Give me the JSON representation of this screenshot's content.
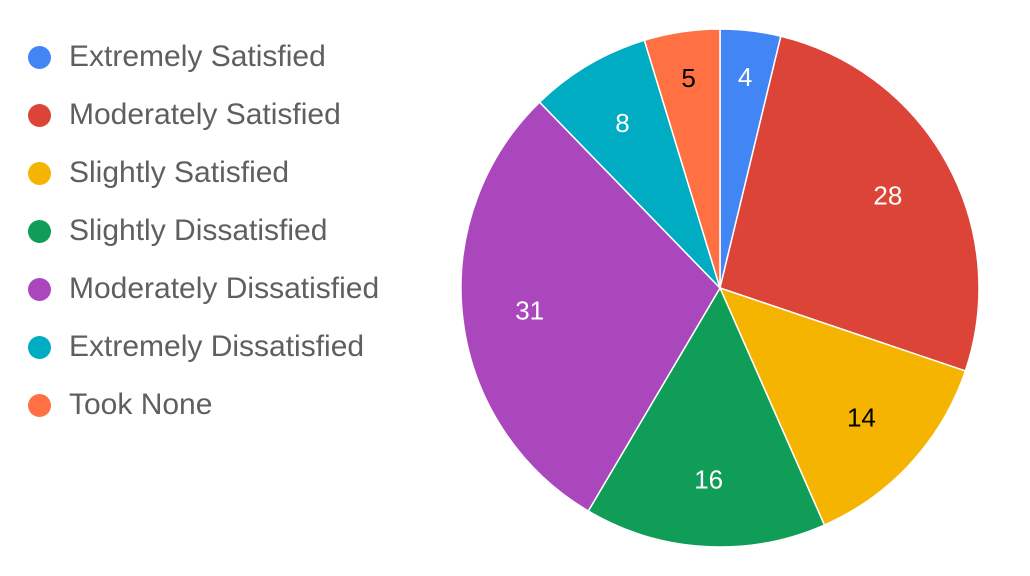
{
  "chart_data": {
    "type": "pie",
    "title": "",
    "legend_position": "left",
    "categories": [
      "Extremely Satisfied",
      "Moderately Satisfied",
      "Slightly Satisfied",
      "Slightly Dissatisfied",
      "Moderately Dissatisfied",
      "Extremely Dissatisfied",
      "Took None"
    ],
    "values": [
      4,
      28,
      14,
      16,
      31,
      8,
      5
    ],
    "colors": [
      "#4285F4",
      "#DB4437",
      "#F4B400",
      "#0F9D58",
      "#AB47BC",
      "#00ACC1",
      "#FF7043"
    ],
    "label_colors": [
      "#ffffff",
      "#ffffff",
      "#000000",
      "#ffffff",
      "#ffffff",
      "#ffffff",
      "#000000"
    ]
  }
}
